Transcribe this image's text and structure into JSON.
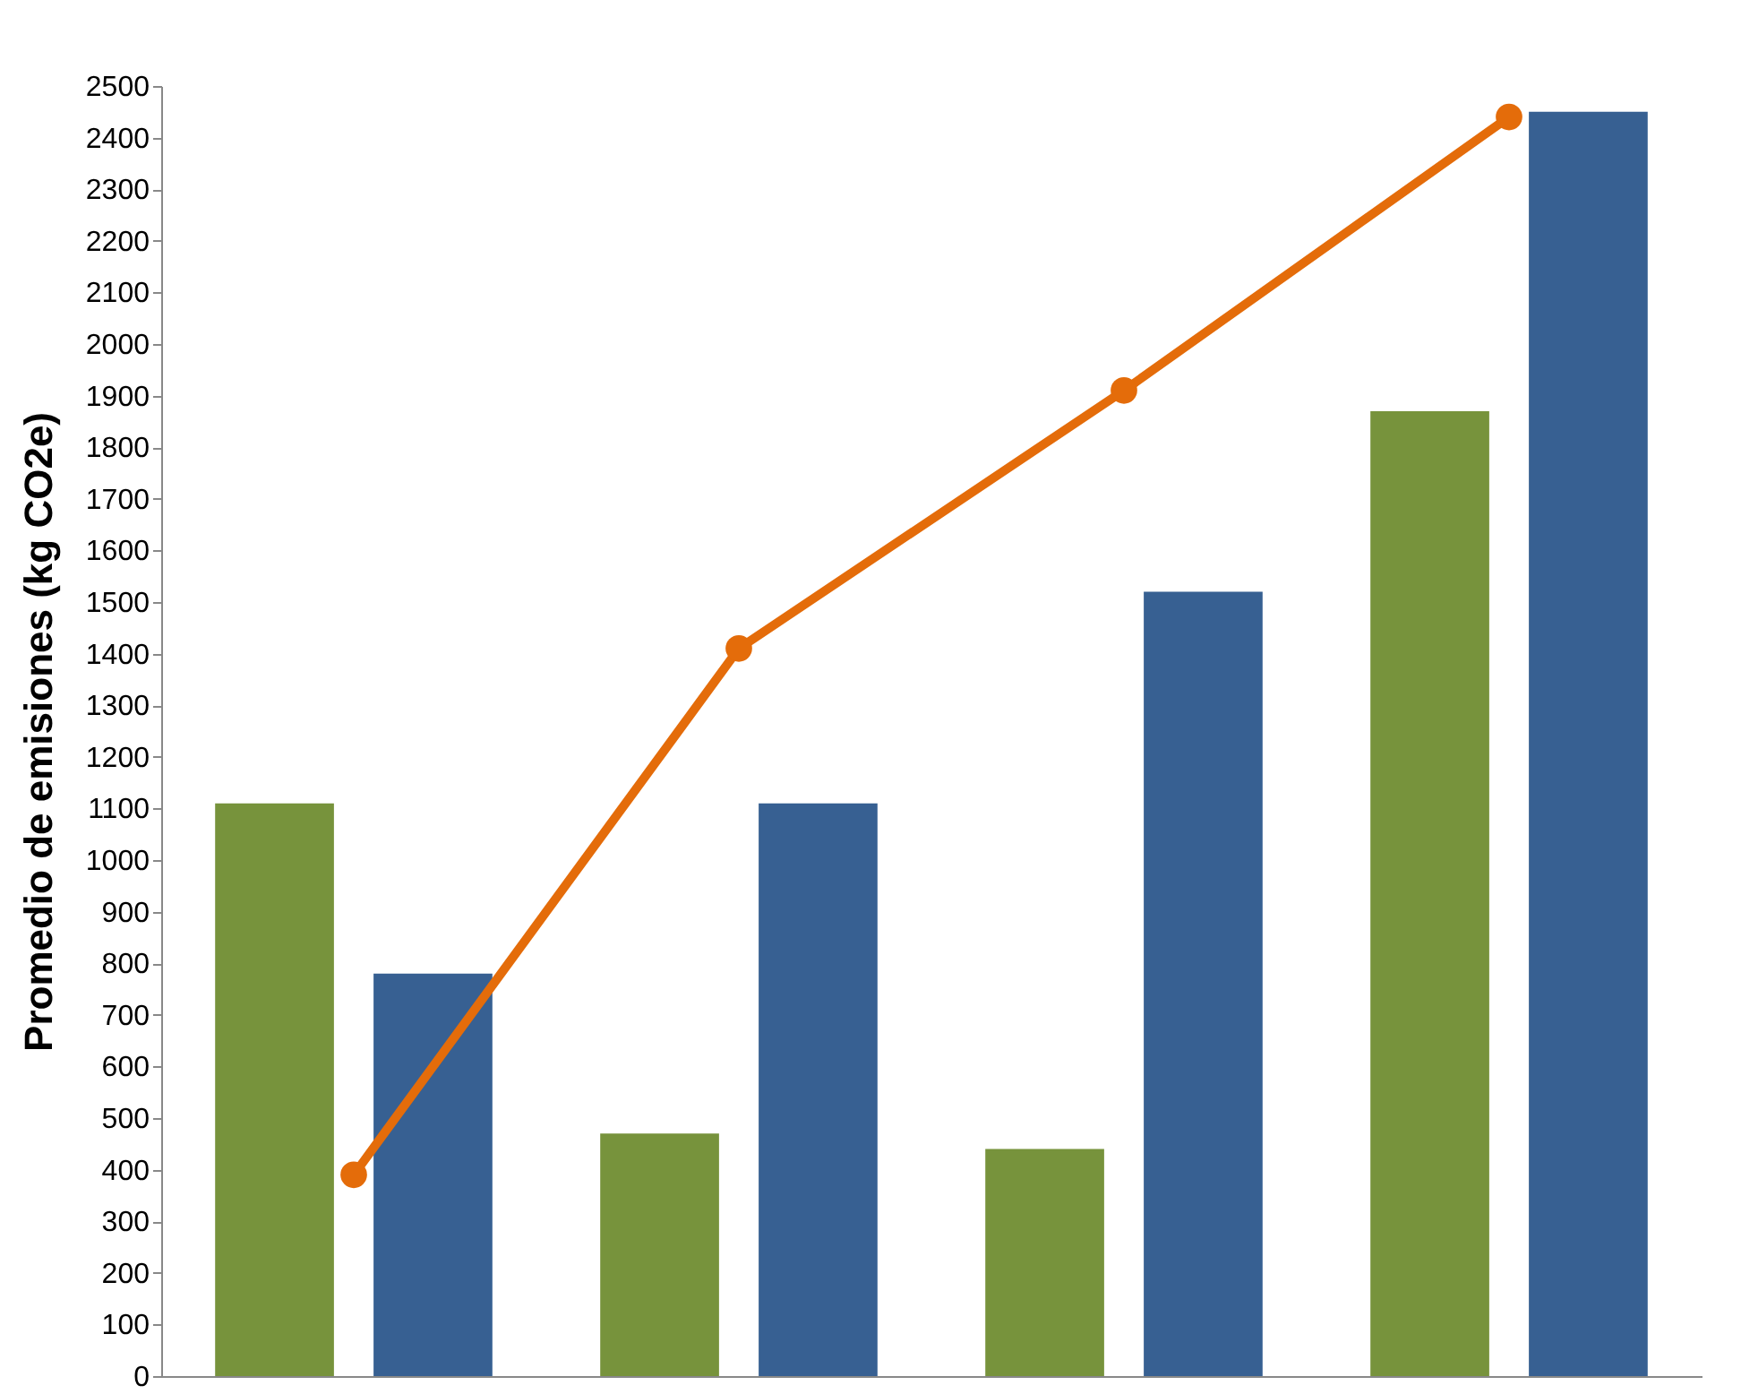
{
  "chart_data": {
    "type": "bar",
    "ylabel": "Promedio de emisiones (kg CO2e)",
    "categories": [
      null,
      null,
      null,
      null
    ],
    "series": [
      {
        "type": "bar",
        "color": "#77933c",
        "values": [
          1110,
          470,
          440,
          1870
        ]
      },
      {
        "type": "bar",
        "color": "#376092",
        "values": [
          780,
          1110,
          1520,
          2450
        ]
      },
      {
        "type": "line",
        "color": "#e46c0a",
        "values": [
          390,
          1410,
          1910,
          2440
        ],
        "marker": "circle",
        "line_style": "solid"
      }
    ],
    "ylim": [
      0,
      2500
    ],
    "yticks": [
      0,
      100,
      200,
      300,
      400,
      500,
      600,
      700,
      800,
      900,
      1000,
      1100,
      1200,
      1300,
      1400,
      1500,
      1600,
      1700,
      1800,
      1900,
      2000,
      2100,
      2200,
      2300,
      2400,
      2500
    ],
    "grid": false,
    "legend": false,
    "tick_labels": "y"
  }
}
